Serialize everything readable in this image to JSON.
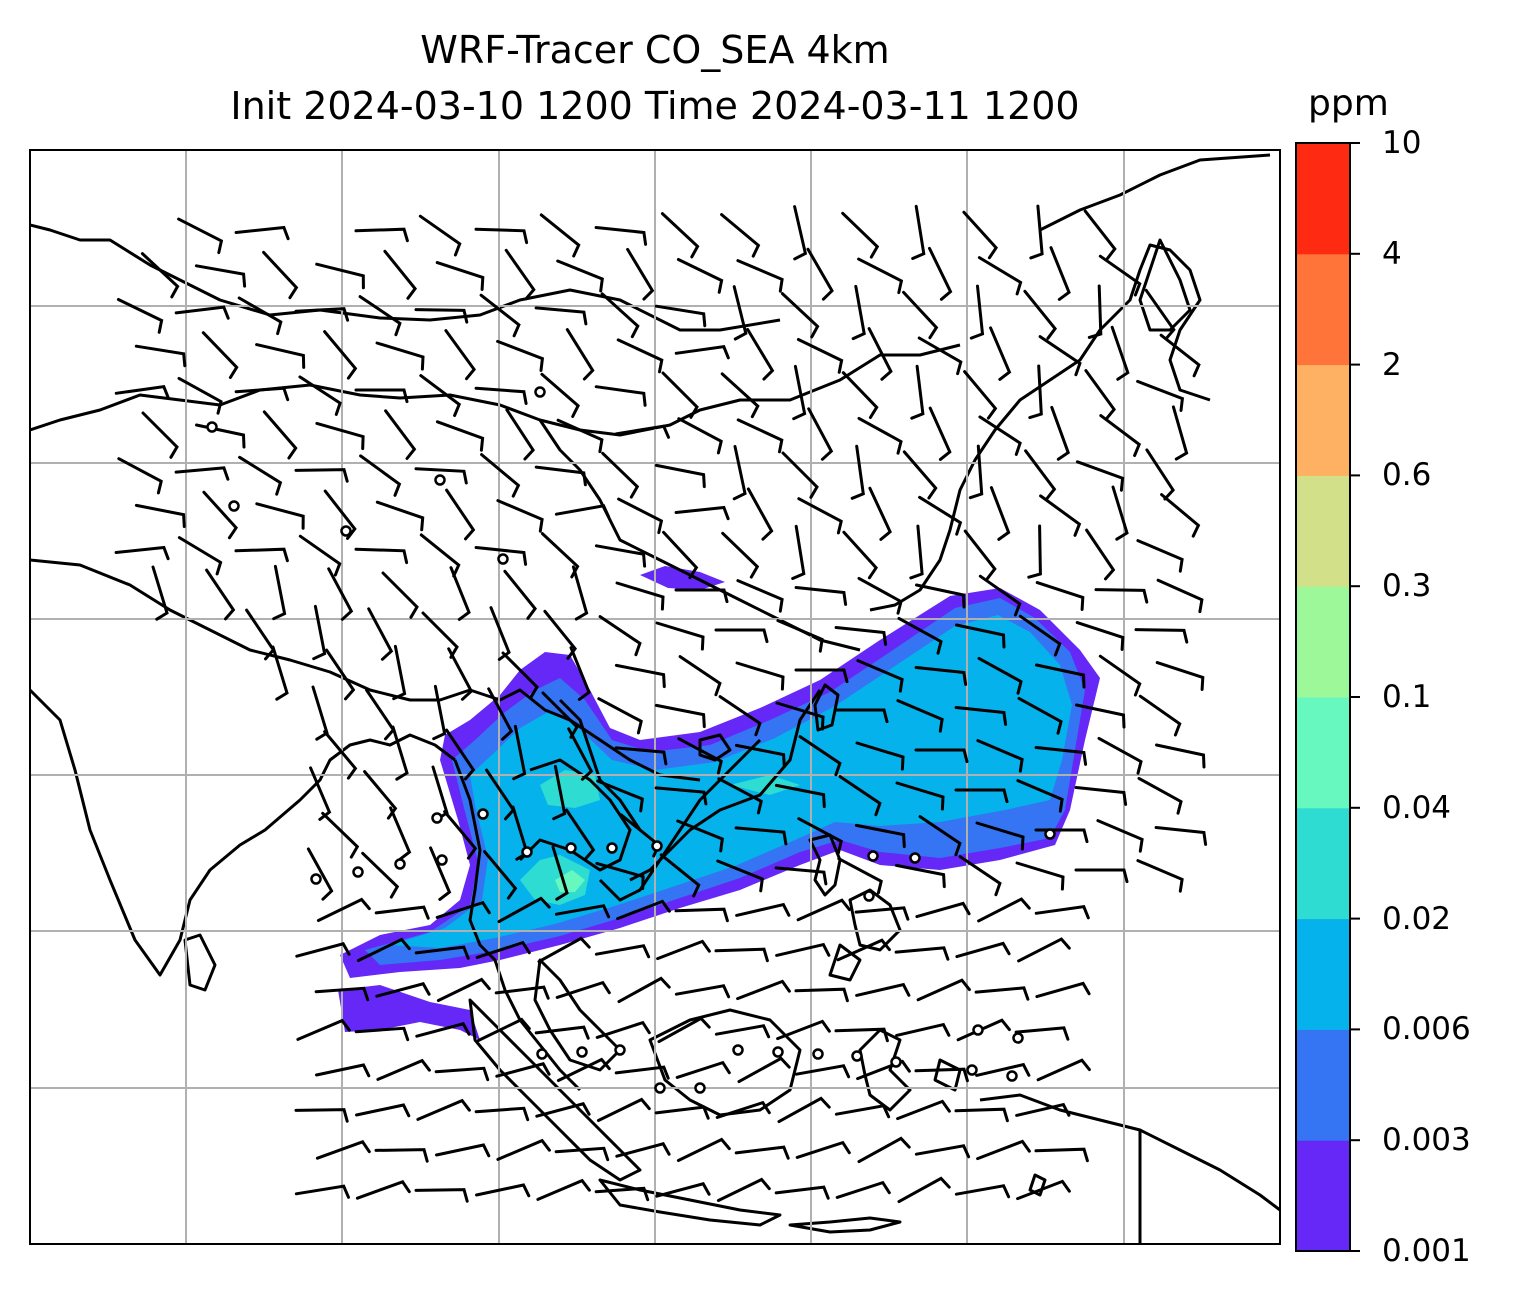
{
  "title": {
    "line1": "WRF-Tracer CO_SEA 4km",
    "line2": "Init 2024-03-10 1200 Time 2024-03-11 1200"
  },
  "colorbar": {
    "unit": "ppm",
    "ticks": [
      "0.001",
      "0.003",
      "0.006",
      "0.02",
      "0.04",
      "0.1",
      "0.3",
      "0.6",
      "2",
      "4",
      "10"
    ],
    "colors": [
      "#6528f7",
      "#3574f2",
      "#05b2eb",
      "#2edcd2",
      "#66f8be",
      "#9cf899",
      "#d2e08a",
      "#ffb163",
      "#ff7539",
      "#ff2a12"
    ]
  },
  "map": {
    "region": "Southeast Asia",
    "gridlines": true,
    "coastline_color": "#000000",
    "barb_color": "#000000"
  }
}
